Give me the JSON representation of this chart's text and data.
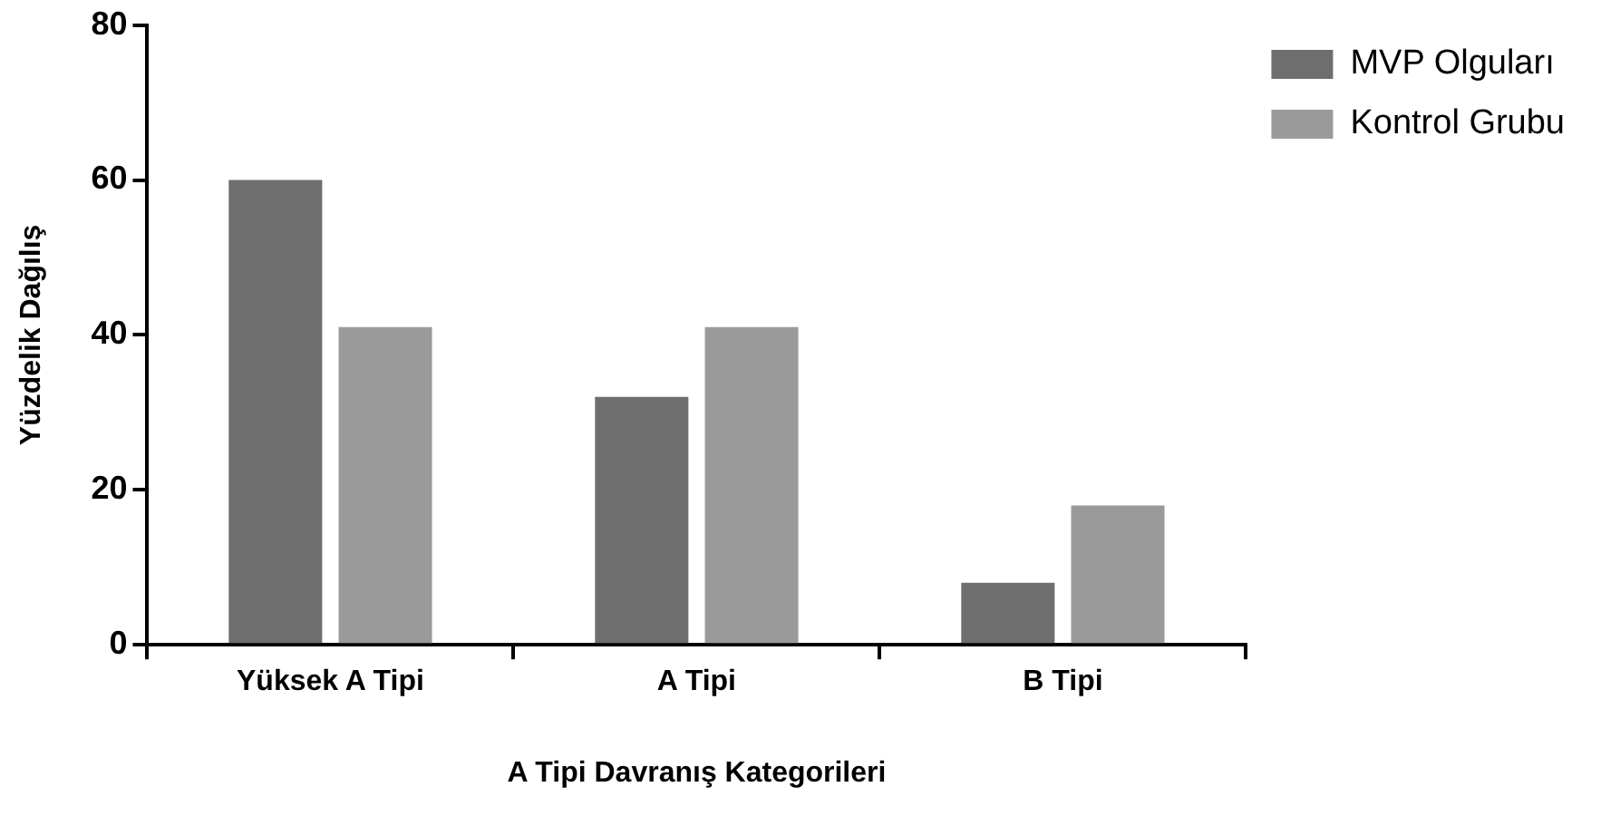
{
  "chart_data": {
    "type": "bar",
    "xlabel": "A Tipi Davranış Kategorileri",
    "ylabel": "Yüzdelik Dağılış",
    "categories": [
      "Yüksek A Tipi",
      "A Tipi",
      "B Tipi"
    ],
    "series": [
      {
        "name": "MVP Olguları",
        "color": "#6e6e6e",
        "values": [
          60,
          32,
          8
        ]
      },
      {
        "name": "Kontrol Grubu",
        "color": "#9a9a9a",
        "values": [
          41,
          41,
          18
        ]
      }
    ],
    "ylim": [
      0,
      80
    ],
    "yticks": [
      0,
      20,
      40,
      60,
      80
    ],
    "grid": false,
    "legend": "top right"
  }
}
